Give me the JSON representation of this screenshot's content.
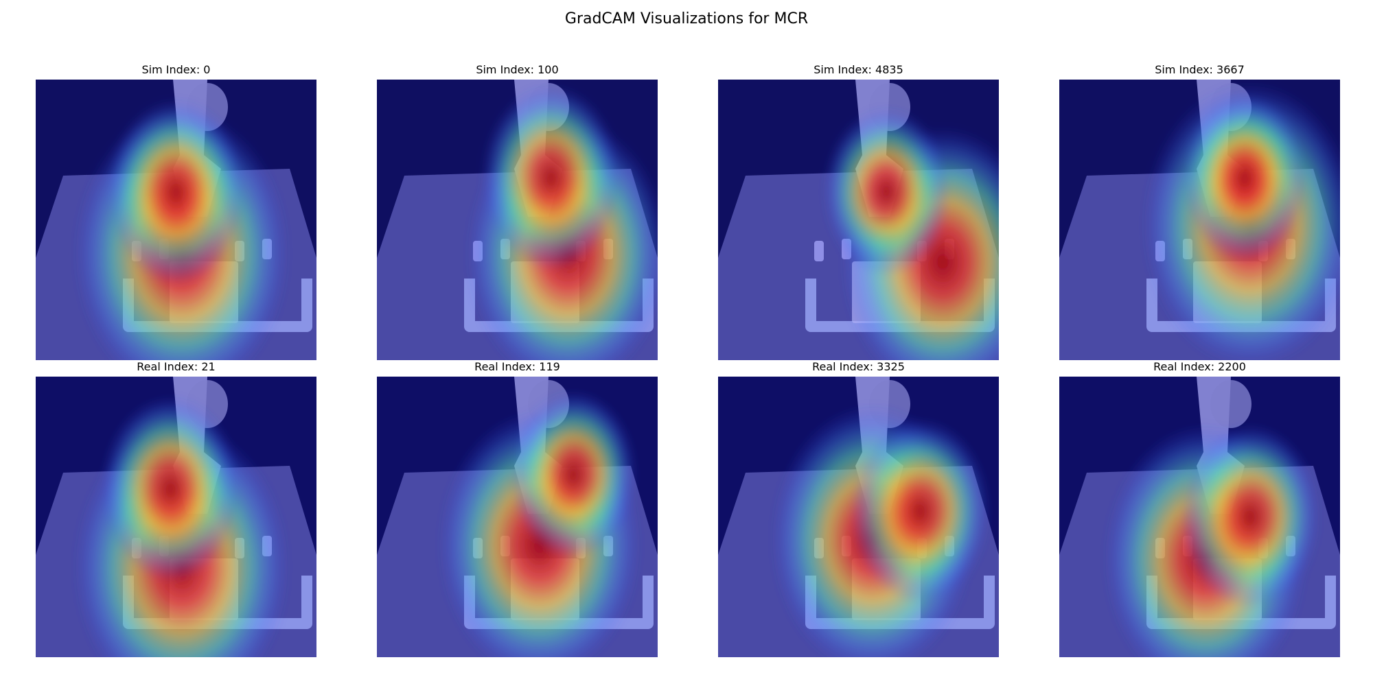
{
  "figure": {
    "title": "GradCAM Visualizations for MCR"
  },
  "panels": [
    {
      "title": "Sim Index: 0",
      "kind": "sim",
      "heat": [
        [
          0.52,
          0.62,
          0.85,
          0.85
        ],
        [
          0.5,
          0.4,
          0.55,
          0.55
        ]
      ]
    },
    {
      "title": "Sim Index: 100",
      "kind": "sim",
      "heat": [
        [
          0.68,
          0.62,
          0.8,
          0.8
        ],
        [
          0.62,
          0.35,
          0.55,
          0.55
        ]
      ]
    },
    {
      "title": "Sim Index: 4835",
      "kind": "sim",
      "heat": [
        [
          0.8,
          0.65,
          0.8,
          0.8
        ],
        [
          0.6,
          0.4,
          0.5,
          0.5
        ]
      ]
    },
    {
      "title": "Sim Index: 3667",
      "kind": "sim",
      "heat": [
        [
          0.68,
          0.52,
          0.85,
          0.85
        ],
        [
          0.66,
          0.35,
          0.5,
          0.5
        ]
      ]
    },
    {
      "title": "Real Index: 21",
      "kind": "real",
      "heat": [
        [
          0.52,
          0.68,
          0.85,
          0.85
        ],
        [
          0.48,
          0.4,
          0.55,
          0.55
        ]
      ]
    },
    {
      "title": "Real Index: 119",
      "kind": "real",
      "heat": [
        [
          0.58,
          0.6,
          0.8,
          0.8
        ],
        [
          0.7,
          0.35,
          0.5,
          0.5
        ]
      ]
    },
    {
      "title": "Real Index: 3325",
      "kind": "real",
      "heat": [
        [
          0.55,
          0.58,
          0.8,
          0.8
        ],
        [
          0.72,
          0.48,
          0.55,
          0.55
        ]
      ]
    },
    {
      "title": "Real Index: 2200",
      "kind": "real",
      "heat": [
        [
          0.52,
          0.65,
          0.8,
          0.8
        ],
        [
          0.68,
          0.5,
          0.55,
          0.55
        ]
      ]
    }
  ]
}
